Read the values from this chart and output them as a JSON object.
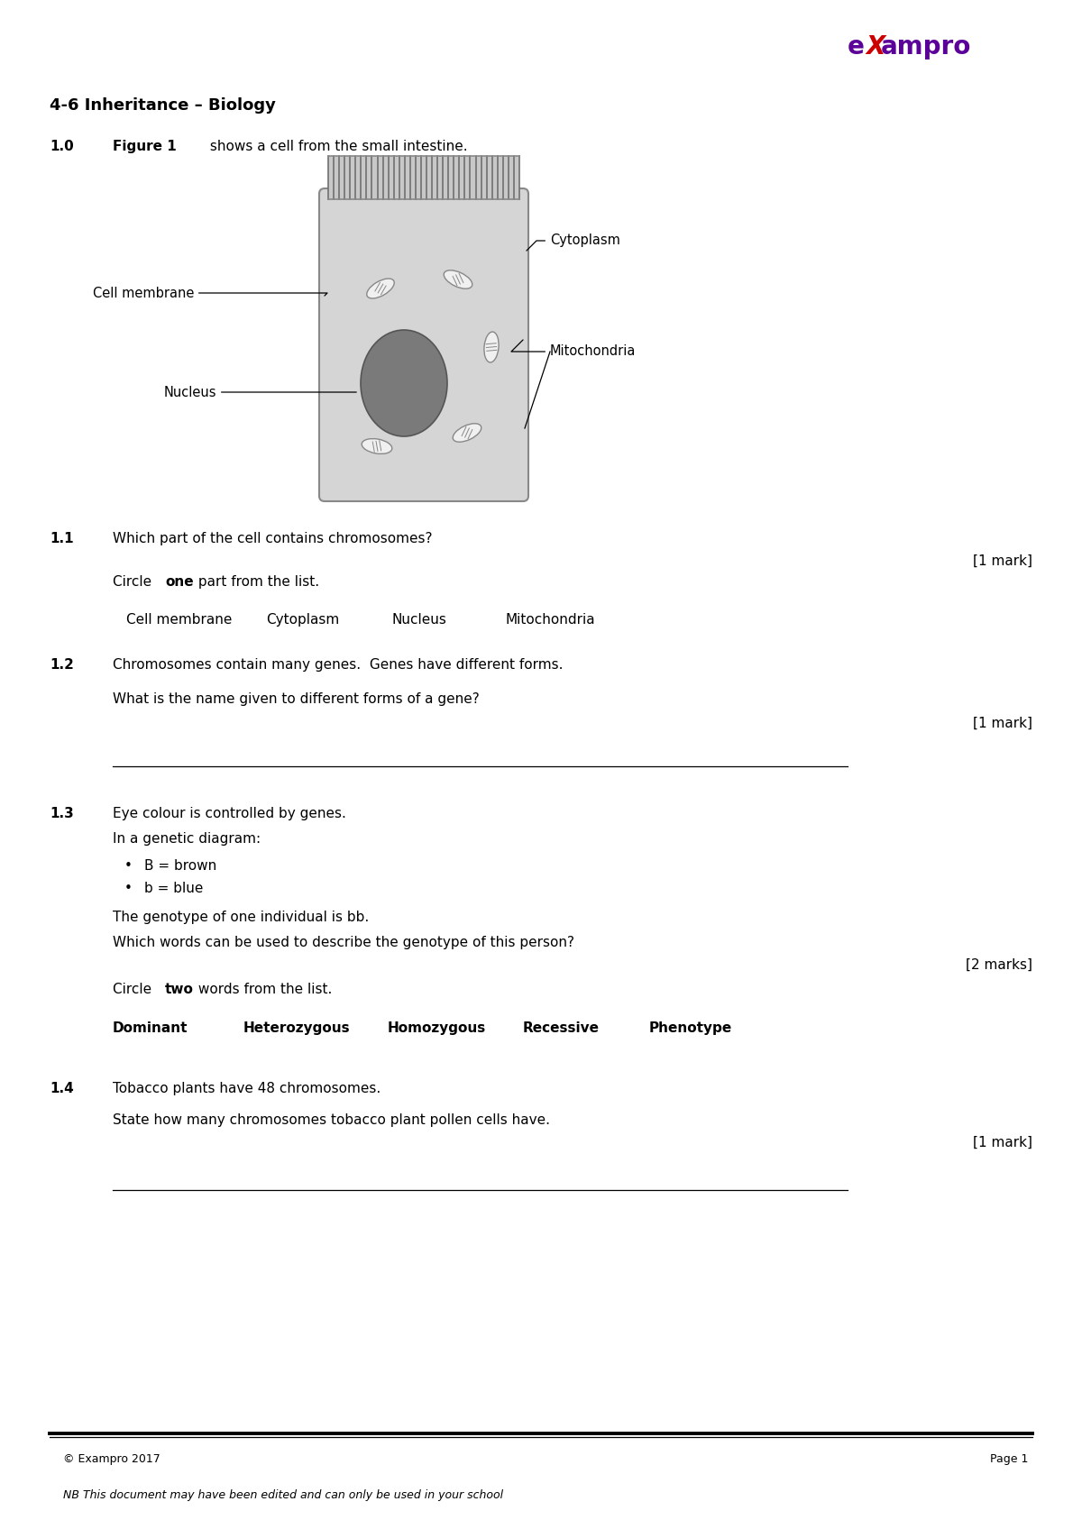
{
  "page_width": 12.0,
  "page_height": 16.96,
  "bg_color": "#ffffff",
  "header_title": "4-6 Inheritance – Biology",
  "q1_prefix": "1.0",
  "q1_bold": "Figure 1",
  "q1_rest": " shows a cell from the small intestine.",
  "figure_title": "Figure 1",
  "q11_prefix": "1.1",
  "q11_text": "Which part of the cell contains chromosomes?",
  "q11_mark": "[1 mark]",
  "q11_options": [
    "Cell membrane",
    "Cytoplasm",
    "Nucleus",
    "Mitochondria"
  ],
  "q12_prefix": "1.2",
  "q12_text1": "Chromosomes contain many genes.  Genes have different forms.",
  "q12_text2": "What is the name given to different forms of a gene?",
  "q12_mark": "[1 mark]",
  "q13_prefix": "1.3",
  "q13_text1": "Eye colour is controlled by genes.",
  "q13_text2": "In a genetic diagram:",
  "q13_b1": "B = brown",
  "q13_b2": "b = blue",
  "q13_text3": "The genotype of one individual is bb.",
  "q13_text4": "Which words can be used to describe the genotype of this person?",
  "q13_mark": "[2 marks]",
  "q13_options": [
    "Dominant",
    "Heterozygous",
    "Homozygous",
    "Recessive",
    "Phenotype"
  ],
  "q14_prefix": "1.4",
  "q14_text1": "Tobacco plants have 48 chromosomes.",
  "q14_text2": "State how many chromosomes tobacco plant pollen cells have.",
  "q14_mark": "[1 mark]",
  "footer_left": "© Exampro 2017",
  "footer_right": "Page 1",
  "footer_note": "NB This document may have been edited and can only be used in your school",
  "cell_fill": "#d5d5d5",
  "cell_edge": "#888888",
  "nucleus_fill": "#7a7a7a",
  "nucleus_edge": "#555555",
  "mito_fill": "#f0f0f0",
  "mito_edge": "#888888",
  "logo_purple": "#5b0099",
  "logo_red": "#cc0000"
}
